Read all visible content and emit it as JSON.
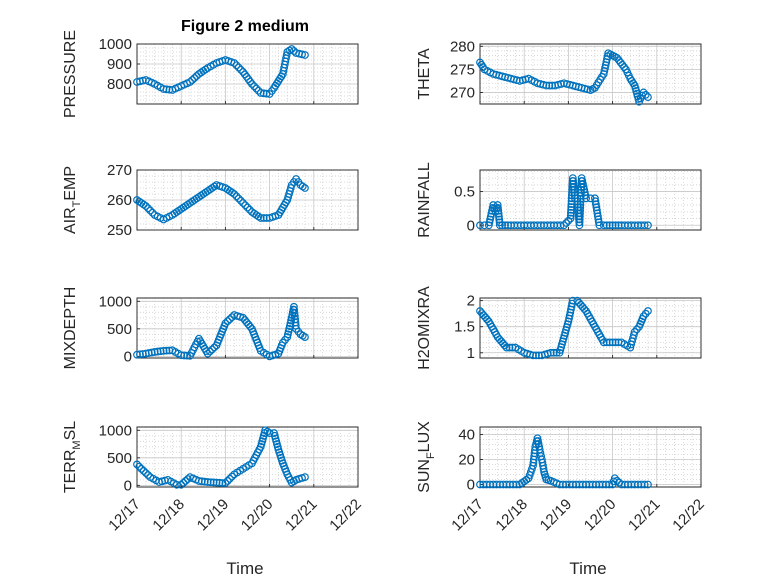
{
  "figure": {
    "title": "Figure 2 medium",
    "xlabel": "Time"
  },
  "colors": {
    "marker": "#0072BD",
    "axis": "#262626"
  },
  "chart_data": [
    {
      "id": "pressure",
      "type": "scatter",
      "ylabel": {
        "base": "PRESSURE",
        "sub": "",
        "rest": ""
      },
      "ylim": [
        700,
        1000
      ],
      "yticks": [
        800,
        900,
        1000
      ],
      "xlim": [
        0,
        5
      ],
      "xticks": [
        "12/17",
        "12/18",
        "12/19",
        "12/20",
        "12/21",
        "12/22"
      ],
      "x": [
        0,
        0.2,
        0.4,
        0.6,
        0.8,
        1.0,
        1.2,
        1.4,
        1.6,
        1.8,
        2.0,
        2.2,
        2.4,
        2.6,
        2.8,
        3.0,
        3.1,
        3.3,
        3.4,
        3.5,
        3.6,
        3.8
      ],
      "y": [
        810,
        820,
        800,
        775,
        770,
        790,
        810,
        850,
        880,
        905,
        920,
        905,
        860,
        800,
        755,
        750,
        780,
        850,
        960,
        975,
        955,
        945
      ]
    },
    {
      "id": "theta",
      "type": "scatter",
      "ylabel": {
        "base": "THETA",
        "sub": "",
        "rest": ""
      },
      "ylim": [
        267.5,
        280.5
      ],
      "yticks": [
        270,
        275,
        280
      ],
      "xlim": [
        0,
        5
      ],
      "xticks": [
        "12/17",
        "12/18",
        "12/19",
        "12/20",
        "12/21",
        "12/22"
      ],
      "x": [
        0,
        0.1,
        0.3,
        0.5,
        0.7,
        0.9,
        1.1,
        1.3,
        1.5,
        1.7,
        1.9,
        2.1,
        2.3,
        2.5,
        2.6,
        2.8,
        2.9,
        3.0,
        3.1,
        3.3,
        3.4,
        3.5,
        3.6,
        3.7,
        3.8
      ],
      "y": [
        276.5,
        275,
        274,
        273.5,
        273,
        272.5,
        273,
        272,
        271.5,
        271.5,
        272,
        271.5,
        271,
        270.5,
        271,
        274,
        278.5,
        278,
        277.5,
        275,
        273,
        271.5,
        268,
        270,
        269
      ]
    },
    {
      "id": "air_temp",
      "type": "scatter",
      "ylabel": {
        "base": "AIR",
        "sub": "T",
        "rest": "EMP"
      },
      "ylim": [
        250,
        270
      ],
      "yticks": [
        250,
        260,
        270
      ],
      "xlim": [
        0,
        5
      ],
      "xticks": [
        "12/17",
        "12/18",
        "12/19",
        "12/20",
        "12/21",
        "12/22"
      ],
      "x": [
        0,
        0.2,
        0.4,
        0.6,
        0.8,
        1.0,
        1.2,
        1.4,
        1.6,
        1.8,
        2.0,
        2.2,
        2.4,
        2.6,
        2.8,
        3.0,
        3.2,
        3.4,
        3.5,
        3.6,
        3.7,
        3.8
      ],
      "y": [
        260,
        258,
        255,
        253.5,
        255,
        257,
        259,
        261,
        263,
        265,
        264,
        262,
        259,
        256,
        254,
        254,
        255,
        260,
        265,
        267,
        265,
        264
      ]
    },
    {
      "id": "rainfall",
      "type": "scatter",
      "ylabel": {
        "base": "RAINFALL",
        "sub": "",
        "rest": ""
      },
      "ylim": [
        -0.07,
        0.82
      ],
      "yticks": [
        0,
        0.5
      ],
      "xlim": [
        0,
        5
      ],
      "xticks": [
        "12/17",
        "12/18",
        "12/19",
        "12/20",
        "12/21",
        "12/22"
      ],
      "x": [
        0,
        0.1,
        0.2,
        0.3,
        0.35,
        0.4,
        0.45,
        0.5,
        0.7,
        1.0,
        1.3,
        1.6,
        1.9,
        2.05,
        2.1,
        2.15,
        2.2,
        2.25,
        2.3,
        2.4,
        2.5,
        2.6,
        2.7,
        2.8,
        3.0,
        3.2,
        3.5,
        3.8
      ],
      "y": [
        0,
        0,
        0,
        0.3,
        0.2,
        0.3,
        0,
        0,
        0,
        0,
        0,
        0,
        0,
        0.1,
        0.7,
        0.4,
        0.4,
        0,
        0.7,
        0.4,
        0.4,
        0.4,
        0,
        0,
        0,
        0,
        0,
        0
      ]
    },
    {
      "id": "mixdepth",
      "type": "scatter",
      "ylabel": {
        "base": "MIXDEPTH",
        "sub": "",
        "rest": ""
      },
      "ylim": [
        -30,
        1060
      ],
      "yticks": [
        0,
        500,
        1000
      ],
      "xlim": [
        0,
        5
      ],
      "xticks": [
        "12/17",
        "12/18",
        "12/19",
        "12/20",
        "12/21",
        "12/22"
      ],
      "x": [
        0,
        0.2,
        0.4,
        0.6,
        0.8,
        1.0,
        1.2,
        1.4,
        1.6,
        1.8,
        1.9,
        2.0,
        2.2,
        2.4,
        2.6,
        2.8,
        3.0,
        3.2,
        3.3,
        3.4,
        3.5,
        3.55,
        3.6,
        3.7,
        3.8
      ],
      "y": [
        30,
        50,
        80,
        100,
        110,
        20,
        10,
        320,
        50,
        200,
        400,
        600,
        750,
        700,
        500,
        100,
        0,
        50,
        250,
        350,
        700,
        900,
        500,
        400,
        350
      ]
    },
    {
      "id": "h2omixra",
      "type": "scatter",
      "ylabel": {
        "base": "H2OMIXRA",
        "sub": "",
        "rest": ""
      },
      "ylim": [
        0.9,
        2.05
      ],
      "yticks": [
        1,
        1.5,
        2
      ],
      "xlim": [
        0,
        5
      ],
      "xticks": [
        "12/17",
        "12/18",
        "12/19",
        "12/20",
        "12/21",
        "12/22"
      ],
      "x": [
        0,
        0.2,
        0.4,
        0.6,
        0.8,
        1.0,
        1.2,
        1.4,
        1.6,
        1.8,
        2.0,
        2.1,
        2.2,
        2.4,
        2.6,
        2.8,
        3.0,
        3.2,
        3.4,
        3.5,
        3.6,
        3.7,
        3.8
      ],
      "y": [
        1.8,
        1.6,
        1.3,
        1.1,
        1.1,
        1.0,
        0.95,
        0.95,
        1.0,
        1.0,
        1.6,
        2.0,
        2.0,
        1.8,
        1.5,
        1.2,
        1.2,
        1.2,
        1.1,
        1.4,
        1.5,
        1.7,
        1.8
      ]
    },
    {
      "id": "terr_msl",
      "type": "scatter",
      "ylabel": {
        "base": "TERR",
        "sub": "M",
        "rest": "SL"
      },
      "ylim": [
        -30,
        1060
      ],
      "yticks": [
        0,
        500,
        1000
      ],
      "xlim": [
        0,
        5
      ],
      "xticks": [
        "12/17",
        "12/18",
        "12/19",
        "12/20",
        "12/21",
        "12/22"
      ],
      "x": [
        0,
        0.1,
        0.3,
        0.5,
        0.7,
        0.9,
        1.0,
        1.2,
        1.4,
        1.6,
        1.8,
        2.0,
        2.2,
        2.4,
        2.6,
        2.8,
        2.9,
        3.0,
        3.1,
        3.2,
        3.3,
        3.4,
        3.5,
        3.6,
        3.8
      ],
      "y": [
        380,
        300,
        150,
        60,
        100,
        10,
        10,
        150,
        80,
        60,
        50,
        40,
        200,
        300,
        400,
        700,
        1000,
        950,
        950,
        650,
        400,
        200,
        50,
        100,
        150
      ]
    },
    {
      "id": "sun_flux",
      "type": "scatter",
      "ylabel": {
        "base": "SUN",
        "sub": "F",
        "rest": "LUX"
      },
      "ylim": [
        -2,
        46
      ],
      "yticks": [
        0,
        20,
        40
      ],
      "xlim": [
        0,
        5
      ],
      "xticks": [
        "12/17",
        "12/18",
        "12/19",
        "12/20",
        "12/21",
        "12/22"
      ],
      "x": [
        0,
        0.3,
        0.6,
        0.9,
        1.1,
        1.2,
        1.25,
        1.3,
        1.35,
        1.4,
        1.45,
        1.5,
        1.6,
        1.8,
        2.1,
        2.4,
        2.7,
        3.0,
        3.05,
        3.1,
        3.2,
        3.5,
        3.8
      ],
      "y": [
        0,
        0,
        0,
        0,
        5,
        15,
        30,
        37,
        28,
        20,
        10,
        4,
        3,
        0,
        0,
        0,
        0,
        0,
        5,
        3,
        0,
        0,
        0
      ]
    }
  ]
}
